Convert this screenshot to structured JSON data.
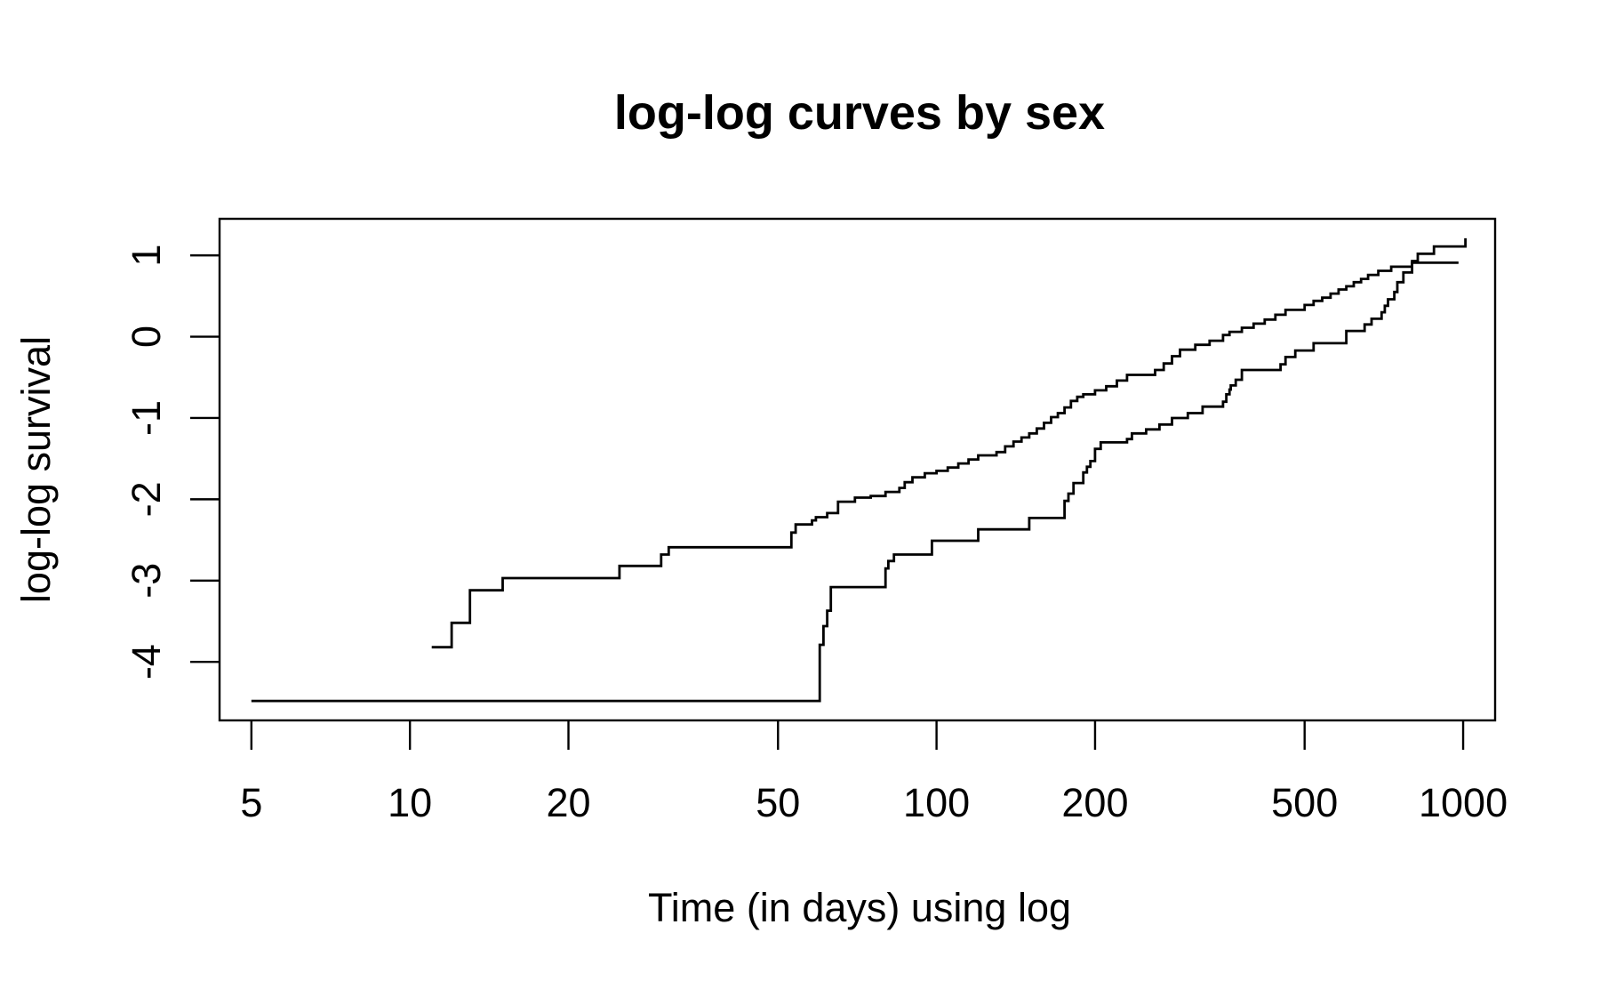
{
  "chart_data": {
    "type": "line",
    "title": "log-log curves by sex",
    "xlabel": "Time (in days) using log",
    "ylabel": "log-log survival",
    "x_scale": "log",
    "x_ticks": [
      5,
      10,
      20,
      50,
      100,
      200,
      500,
      1000
    ],
    "x_tick_labels": [
      "5",
      "10",
      "20",
      "50",
      "100",
      "200",
      "500",
      "1000"
    ],
    "y_ticks": [
      -4,
      -3,
      -2,
      -1,
      0,
      1
    ],
    "y_tick_labels": [
      "-4",
      "-3",
      "-2",
      "-1",
      "0",
      "1"
    ],
    "xlim": [
      4.35,
      1150
    ],
    "ylim": [
      -4.72,
      1.45
    ],
    "grid": false,
    "step": true,
    "series": [
      {
        "x": [
          11,
          12,
          13,
          15,
          25,
          30,
          31,
          53,
          54,
          58,
          59,
          62,
          65,
          70,
          75,
          80,
          85,
          87,
          90,
          95,
          100,
          105,
          110,
          115,
          120,
          130,
          135,
          140,
          145,
          150,
          155,
          160,
          165,
          170,
          175,
          180,
          185,
          190,
          200,
          210,
          220,
          230,
          260,
          270,
          280,
          290,
          310,
          330,
          350,
          360,
          380,
          400,
          420,
          440,
          460,
          500,
          520,
          540,
          560,
          580,
          600,
          620,
          640,
          660,
          690,
          730,
          800,
          820,
          880,
          1010
        ],
        "y": [
          -3.82,
          -3.52,
          -3.12,
          -2.97,
          -2.82,
          -2.68,
          -2.59,
          -2.41,
          -2.31,
          -2.26,
          -2.22,
          -2.17,
          -2.03,
          -1.98,
          -1.96,
          -1.91,
          -1.86,
          -1.79,
          -1.73,
          -1.68,
          -1.65,
          -1.61,
          -1.56,
          -1.51,
          -1.46,
          -1.42,
          -1.35,
          -1.29,
          -1.24,
          -1.19,
          -1.13,
          -1.06,
          -0.99,
          -0.94,
          -0.87,
          -0.79,
          -0.74,
          -0.71,
          -0.66,
          -0.61,
          -0.54,
          -0.47,
          -0.41,
          -0.33,
          -0.24,
          -0.16,
          -0.1,
          -0.05,
          0.02,
          0.06,
          0.11,
          0.16,
          0.21,
          0.27,
          0.33,
          0.39,
          0.44,
          0.48,
          0.53,
          0.58,
          0.62,
          0.67,
          0.71,
          0.76,
          0.81,
          0.86,
          0.93,
          1.02,
          1.11,
          1.21
        ]
      },
      {
        "x": [
          5,
          60,
          61,
          62,
          63,
          80,
          81,
          83,
          98,
          120,
          150,
          175,
          178,
          182,
          190,
          193,
          196,
          200,
          205,
          230,
          235,
          250,
          265,
          280,
          300,
          320,
          350,
          355,
          360,
          362,
          370,
          380,
          450,
          460,
          480,
          520,
          600,
          650,
          670,
          700,
          710,
          720,
          740,
          750,
          770,
          800,
          980
        ],
        "y": [
          -4.48,
          -3.79,
          -3.56,
          -3.37,
          -3.08,
          -2.85,
          -2.76,
          -2.68,
          -2.51,
          -2.37,
          -2.23,
          -2.02,
          -1.93,
          -1.8,
          -1.67,
          -1.6,
          -1.53,
          -1.38,
          -1.3,
          -1.26,
          -1.19,
          -1.14,
          -1.08,
          -1.0,
          -0.94,
          -0.86,
          -0.8,
          -0.71,
          -0.65,
          -0.6,
          -0.53,
          -0.41,
          -0.34,
          -0.25,
          -0.17,
          -0.08,
          0.07,
          0.15,
          0.22,
          0.3,
          0.38,
          0.46,
          0.55,
          0.67,
          0.79,
          0.91,
          0.91
        ]
      }
    ]
  }
}
